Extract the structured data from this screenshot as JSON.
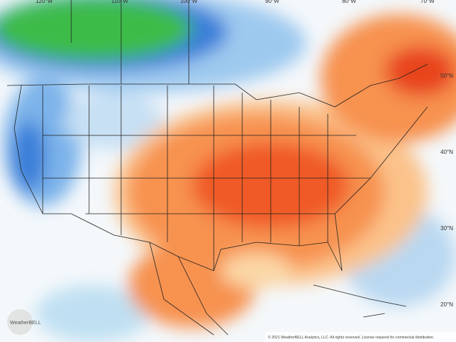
{
  "map": {
    "longitude_labels": [
      "120°W",
      "110°W",
      "100°W",
      "90°W",
      "80°W",
      "70°W"
    ],
    "latitude_labels": [
      "50°N",
      "40°N",
      "30°N",
      "20°N"
    ],
    "logo": "WeatherBELL",
    "copyright": "© 2021 WeatherBELL Analytics, LLC. All rights reserved. License required for commercial distribution."
  }
}
